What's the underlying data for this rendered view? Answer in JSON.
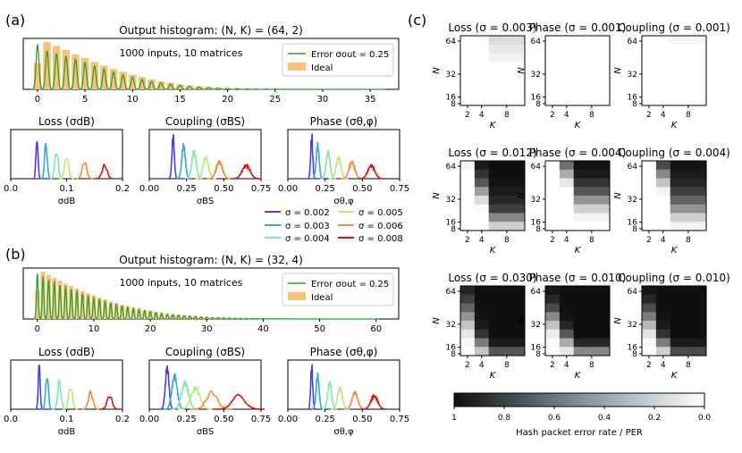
{
  "panel_labels": [
    "(a)",
    "(b)",
    "(c)"
  ],
  "colors": {
    "ideal_bar": "#f8c27a",
    "error_line": "#2ca02c",
    "sigma": [
      "#4b3cf0",
      "#2ea6ea",
      "#7fe8a8",
      "#b8ec78",
      "#f58a40",
      "#e31010"
    ]
  },
  "legend_sigma": {
    "labels": [
      "σ = 0.002",
      "σ = 0.003",
      "σ = 0.004",
      "σ = 0.005",
      "σ = 0.006",
      "σ = 0.008"
    ]
  },
  "colorbar": {
    "label": "Hash packet error rate / PER",
    "ticks": [
      "1",
      "0.8",
      "0.6",
      "0.4",
      "0.2",
      "0.0"
    ]
  },
  "chart_data": [
    {
      "id": "a-histogram",
      "type": "bar",
      "title": "Output histogram: (N, K) = (64, 2)",
      "annotation": "1000 inputs, 10 matrices",
      "legend": [
        "Error σout = 0.25",
        "Ideal"
      ],
      "xlim": [
        -1.5,
        38
      ],
      "xticks": [
        "0",
        "5",
        "10",
        "15",
        "20",
        "25",
        "30",
        "35"
      ],
      "x": [
        0,
        1,
        2,
        3,
        4,
        5,
        6,
        7,
        8,
        9,
        10,
        11,
        12,
        13,
        14,
        15,
        16,
        17,
        18,
        19,
        20,
        21,
        22,
        23,
        24,
        25,
        26,
        27,
        28,
        29,
        30,
        31,
        32,
        33,
        34,
        35,
        36
      ],
      "values": [
        0.55,
        1.0,
        0.92,
        0.83,
        0.74,
        0.66,
        0.58,
        0.5,
        0.43,
        0.37,
        0.31,
        0.26,
        0.21,
        0.17,
        0.14,
        0.11,
        0.085,
        0.065,
        0.05,
        0.038,
        0.028,
        0.02,
        0.015,
        0.011,
        0.008,
        0.006,
        0.004,
        0.003,
        0.002,
        0.0015,
        0.001,
        0.0008,
        0.0006,
        0.0004,
        0.0003,
        0.0002,
        0.0001
      ],
      "series": [
        {
          "name": "Error σout = 0.25",
          "values": [
            0.95,
            0.82,
            0.76,
            0.7,
            0.64,
            0.57,
            0.5,
            0.43,
            0.37,
            0.31,
            0.26,
            0.21,
            0.17,
            0.14,
            0.11,
            0.085,
            0.065,
            0.05,
            0.038,
            0.028,
            0.02,
            0.015,
            0.011,
            0.008,
            0.006,
            0.004,
            0.003,
            0.002,
            0.0015,
            0.001,
            0.0008,
            0.0006,
            0.0004,
            0.0003,
            0.0002,
            0.0001,
            0.0001
          ]
        }
      ]
    },
    {
      "id": "a-loss",
      "type": "line",
      "title": "Loss (σdB)",
      "xlabel": "σdB",
      "xlim": [
        0,
        0.2
      ],
      "xticks": [
        "0.0",
        "0.1",
        "0.2"
      ],
      "tickvals": [
        0,
        0.1,
        0.2
      ],
      "peaks": [
        0.047,
        0.063,
        0.082,
        0.1,
        0.132,
        0.168
      ],
      "heights": [
        0.95,
        0.78,
        0.62,
        0.5,
        0.38,
        0.3
      ],
      "widths": [
        0.0018,
        0.0024,
        0.003,
        0.0035,
        0.004,
        0.0045
      ]
    },
    {
      "id": "a-coupling",
      "type": "line",
      "title": "Coupling (σBS)",
      "xlabel": "σBS",
      "xlim": [
        0,
        0.75
      ],
      "xticks": [
        "0.00",
        "0.25",
        "0.50",
        "0.75"
      ],
      "tickvals": [
        0,
        0.25,
        0.5,
        0.75
      ],
      "peaks": [
        0.16,
        0.23,
        0.3,
        0.38,
        0.47,
        0.65
      ],
      "heights": [
        0.95,
        0.75,
        0.6,
        0.48,
        0.38,
        0.3
      ],
      "widths": [
        0.008,
        0.012,
        0.015,
        0.018,
        0.021,
        0.026
      ]
    },
    {
      "id": "a-phase",
      "type": "line",
      "title": "Phase (σθ,φ)",
      "xlabel": "σθ,φ",
      "xlim": [
        0,
        0.75
      ],
      "xticks": [
        "0.00",
        "0.25",
        "0.50",
        "0.75"
      ],
      "tickvals": [
        0,
        0.25,
        0.5,
        0.75
      ],
      "peaks": [
        0.16,
        0.2,
        0.27,
        0.34,
        0.43,
        0.56
      ],
      "heights": [
        0.95,
        0.75,
        0.6,
        0.48,
        0.38,
        0.3
      ],
      "widths": [
        0.007,
        0.01,
        0.013,
        0.016,
        0.019,
        0.023
      ]
    },
    {
      "id": "b-histogram",
      "type": "bar",
      "title": "Output histogram: (N, K) = (32, 4)",
      "annotation": "1000 inputs, 10 matrices",
      "legend": [
        "Error σout = 0.25",
        "Ideal"
      ],
      "xlim": [
        -2.5,
        64
      ],
      "xticks": [
        "0",
        "10",
        "20",
        "30",
        "40",
        "50",
        "60"
      ],
      "x": [
        0,
        1,
        2,
        3,
        4,
        5,
        6,
        7,
        8,
        9,
        10,
        11,
        12,
        13,
        14,
        15,
        16,
        17,
        18,
        19,
        20,
        21,
        22,
        23,
        24,
        25,
        26,
        27,
        28,
        29,
        30,
        31,
        32,
        33,
        34,
        35,
        36,
        37,
        38,
        39,
        40,
        41,
        42,
        43,
        44,
        45,
        46,
        47,
        48,
        49,
        50,
        51,
        52,
        53,
        54,
        55,
        56,
        57,
        58,
        59,
        60
      ],
      "values": [
        0.6,
        1.0,
        0.93,
        0.87,
        0.81,
        0.75,
        0.7,
        0.64,
        0.59,
        0.54,
        0.5,
        0.45,
        0.41,
        0.37,
        0.34,
        0.3,
        0.27,
        0.24,
        0.22,
        0.19,
        0.17,
        0.15,
        0.13,
        0.115,
        0.1,
        0.088,
        0.077,
        0.067,
        0.058,
        0.05,
        0.043,
        0.037,
        0.032,
        0.027,
        0.023,
        0.02,
        0.017,
        0.014,
        0.012,
        0.01,
        0.0085,
        0.007,
        0.006,
        0.005,
        0.004,
        0.0033,
        0.0027,
        0.0022,
        0.0018,
        0.0015,
        0.0012,
        0.001,
        0.0008,
        0.0006,
        0.0005,
        0.0004,
        0.0003,
        0.0002,
        0.0002,
        0.0001,
        0.0001
      ],
      "series": [
        {
          "name": "Error σout = 0.25",
          "values": [
            0.98,
            0.9,
            0.85,
            0.8,
            0.75,
            0.7,
            0.65,
            0.6,
            0.55,
            0.5,
            0.46,
            0.42,
            0.38,
            0.34,
            0.31,
            0.28,
            0.25,
            0.22,
            0.2,
            0.18,
            0.16,
            0.14,
            0.12,
            0.105,
            0.092,
            0.08,
            0.07,
            0.061,
            0.053,
            0.046,
            0.04,
            0.034,
            0.029,
            0.025,
            0.021,
            0.018,
            0.015,
            0.013,
            0.011,
            0.009,
            0.0075,
            0.0062,
            0.0052,
            0.0043,
            0.0035,
            0.0029,
            0.0024,
            0.002,
            0.0016,
            0.0013,
            0.001,
            0.0008,
            0.0006,
            0.0005,
            0.0004,
            0.0003,
            0.0002,
            0.0002,
            0.0001,
            0.0001,
            0.0001
          ]
        }
      ]
    },
    {
      "id": "b-loss",
      "type": "line",
      "title": "Loss (σdB)",
      "xlabel": "σdB",
      "xlim": [
        0,
        0.2
      ],
      "xticks": [
        "0.0",
        "0.1",
        "0.2"
      ],
      "tickvals": [
        0,
        0.1,
        0.2
      ],
      "peaks": [
        0.051,
        0.065,
        0.087,
        0.107,
        0.143,
        0.177
      ],
      "heights": [
        0.95,
        0.78,
        0.62,
        0.5,
        0.38,
        0.3
      ],
      "widths": [
        0.0018,
        0.0024,
        0.003,
        0.0035,
        0.004,
        0.0045
      ]
    },
    {
      "id": "b-coupling",
      "type": "line",
      "title": "Coupling (σBS)",
      "xlabel": "σBS",
      "xlim": [
        0,
        0.75
      ],
      "xticks": [
        "0.00",
        "0.25",
        "0.50",
        "0.75"
      ],
      "tickvals": [
        0,
        0.25,
        0.5,
        0.75
      ],
      "peaks": [
        0.12,
        0.17,
        0.24,
        0.31,
        0.42,
        0.6
      ],
      "heights": [
        0.95,
        0.75,
        0.6,
        0.48,
        0.38,
        0.3
      ],
      "widths": [
        0.012,
        0.018,
        0.024,
        0.03,
        0.036,
        0.044
      ]
    },
    {
      "id": "b-phase",
      "type": "line",
      "title": "Phase (σθ,φ)",
      "xlabel": "σθ,φ",
      "xlim": [
        0,
        0.75
      ],
      "xticks": [
        "0.00",
        "0.25",
        "0.50",
        "0.75"
      ],
      "tickvals": [
        0,
        0.25,
        0.5,
        0.75
      ],
      "peaks": [
        0.16,
        0.2,
        0.28,
        0.35,
        0.45,
        0.58
      ],
      "heights": [
        0.95,
        0.75,
        0.6,
        0.48,
        0.38,
        0.3
      ],
      "widths": [
        0.007,
        0.01,
        0.013,
        0.016,
        0.019,
        0.023
      ]
    },
    {
      "id": "c-heatmaps",
      "type": "heatmap",
      "xlabel": "K",
      "ylabel": "N",
      "xticks": [
        "2",
        "4",
        "8"
      ],
      "yticks": [
        "64",
        "32",
        "16",
        "8"
      ],
      "value_range": [
        1,
        0.0
      ],
      "columns": [
        2,
        4,
        8
      ],
      "rows": 8,
      "panels": [
        {
          "title": "Loss (σ = 0.003)",
          "cells": [
            [
              0,
              0,
              0.15
            ],
            [
              0,
              0,
              0.1
            ],
            [
              0,
              0,
              0.05
            ],
            [
              0,
              0,
              0
            ],
            [
              0,
              0,
              0
            ],
            [
              0,
              0,
              0
            ],
            [
              0,
              0,
              0
            ],
            [
              0,
              0,
              0
            ]
          ]
        },
        {
          "title": "Phase (σ = 0.001)",
          "cells": [
            [
              0,
              0,
              0
            ],
            [
              0,
              0,
              0
            ],
            [
              0,
              0,
              0
            ],
            [
              0,
              0,
              0
            ],
            [
              0,
              0,
              0
            ],
            [
              0,
              0,
              0
            ],
            [
              0,
              0,
              0
            ],
            [
              0,
              0,
              0
            ]
          ]
        },
        {
          "title": "Coupling (σ = 0.001)",
          "cells": [
            [
              0,
              0,
              0.04
            ],
            [
              0,
              0,
              0
            ],
            [
              0,
              0,
              0
            ],
            [
              0,
              0,
              0
            ],
            [
              0,
              0,
              0
            ],
            [
              0,
              0,
              0
            ],
            [
              0,
              0,
              0
            ],
            [
              0,
              0,
              0
            ]
          ]
        },
        {
          "title": "Loss (σ = 0.012)",
          "cells": [
            [
              0.05,
              0.95,
              1
            ],
            [
              0,
              0.85,
              1
            ],
            [
              0,
              0.7,
              0.98
            ],
            [
              0,
              0.4,
              0.95
            ],
            [
              0,
              0.15,
              0.9
            ],
            [
              0,
              0.02,
              0.8
            ],
            [
              0,
              0,
              0.5
            ],
            [
              0,
              0,
              0.2
            ]
          ]
        },
        {
          "title": "Phase (σ = 0.004)",
          "cells": [
            [
              0,
              0.6,
              0.98
            ],
            [
              0,
              0.35,
              0.95
            ],
            [
              0,
              0.1,
              0.85
            ],
            [
              0,
              0,
              0.7
            ],
            [
              0,
              0,
              0.45
            ],
            [
              0,
              0,
              0.2
            ],
            [
              0,
              0,
              0.05
            ],
            [
              0,
              0,
              0
            ]
          ]
        },
        {
          "title": "Coupling (σ = 0.004)",
          "cells": [
            [
              0,
              0.75,
              0.98
            ],
            [
              0,
              0.5,
              0.95
            ],
            [
              0,
              0.25,
              0.9
            ],
            [
              0,
              0.05,
              0.8
            ],
            [
              0,
              0,
              0.65
            ],
            [
              0,
              0,
              0.45
            ],
            [
              0,
              0,
              0.2
            ],
            [
              0,
              0,
              0.05
            ]
          ]
        },
        {
          "title": "Loss (σ = 0.030)",
          "cells": [
            [
              0.9,
              1,
              1
            ],
            [
              0.8,
              1,
              1
            ],
            [
              0.65,
              1,
              1
            ],
            [
              0.45,
              0.98,
              1
            ],
            [
              0.25,
              0.95,
              1
            ],
            [
              0.1,
              0.85,
              1
            ],
            [
              0.03,
              0.55,
              0.95
            ],
            [
              0,
              0.25,
              0.7
            ]
          ]
        },
        {
          "title": "Phase (σ = 0.010)",
          "cells": [
            [
              0.97,
              1,
              1
            ],
            [
              0.9,
              1,
              1
            ],
            [
              0.75,
              1,
              1
            ],
            [
              0.5,
              0.98,
              1
            ],
            [
              0.25,
              0.9,
              1
            ],
            [
              0.08,
              0.7,
              1
            ],
            [
              0.02,
              0.35,
              0.9
            ],
            [
              0,
              0.1,
              0.5
            ]
          ]
        },
        {
          "title": "Coupling (σ = 0.010)",
          "cells": [
            [
              0.97,
              1,
              1
            ],
            [
              0.9,
              1,
              1
            ],
            [
              0.75,
              1,
              1
            ],
            [
              0.55,
              0.98,
              1
            ],
            [
              0.3,
              0.95,
              1
            ],
            [
              0.12,
              0.85,
              1
            ],
            [
              0.03,
              0.55,
              0.95
            ],
            [
              0,
              0.2,
              0.75
            ]
          ]
        }
      ]
    }
  ]
}
